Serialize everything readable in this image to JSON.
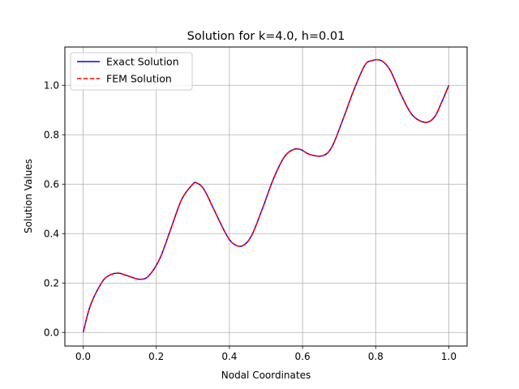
{
  "chart_data": {
    "type": "line",
    "title": "Solution for k=4.0, h=0.01",
    "xlabel": "Nodal Coordinates",
    "ylabel": "Solution Values",
    "xlim": [
      -0.05,
      1.05
    ],
    "ylim": [
      -0.055,
      1.155
    ],
    "xticks": [
      0.0,
      0.2,
      0.4,
      0.6,
      0.8,
      1.0
    ],
    "xtick_labels": [
      "0.0",
      "0.2",
      "0.4",
      "0.6",
      "0.8",
      "1.0"
    ],
    "yticks": [
      0.0,
      0.2,
      0.4,
      0.6,
      0.8,
      1.0
    ],
    "ytick_labels": [
      "0.0",
      "0.2",
      "0.4",
      "0.6",
      "0.8",
      "1.0"
    ],
    "grid": true,
    "legend_position": "top-left",
    "x": [
      0.0,
      0.02,
      0.05,
      0.07,
      0.095,
      0.12,
      0.155,
      0.18,
      0.21,
      0.24,
      0.27,
      0.3,
      0.31,
      0.33,
      0.36,
      0.39,
      0.41,
      0.435,
      0.46,
      0.49,
      0.52,
      0.55,
      0.575,
      0.595,
      0.62,
      0.655,
      0.68,
      0.71,
      0.74,
      0.77,
      0.79,
      0.815,
      0.84,
      0.87,
      0.9,
      0.935,
      0.96,
      0.98,
      1.0
    ],
    "series": [
      {
        "name": "Exact Solution",
        "color": "#0000ff",
        "style": "solid",
        "values": [
          0.0,
          0.11,
          0.2,
          0.23,
          0.24,
          0.23,
          0.215,
          0.23,
          0.3,
          0.42,
          0.54,
          0.6,
          0.605,
          0.58,
          0.49,
          0.4,
          0.36,
          0.35,
          0.39,
          0.5,
          0.62,
          0.71,
          0.74,
          0.74,
          0.72,
          0.715,
          0.75,
          0.86,
          0.98,
          1.08,
          1.1,
          1.1,
          1.06,
          0.96,
          0.88,
          0.85,
          0.87,
          0.93,
          1.0
        ]
      },
      {
        "name": "FEM Solution",
        "color": "#ff0000",
        "style": "dashed",
        "values": [
          0.0,
          0.11,
          0.2,
          0.23,
          0.24,
          0.23,
          0.215,
          0.23,
          0.3,
          0.42,
          0.54,
          0.6,
          0.605,
          0.58,
          0.49,
          0.4,
          0.36,
          0.35,
          0.39,
          0.5,
          0.62,
          0.71,
          0.74,
          0.74,
          0.72,
          0.715,
          0.75,
          0.86,
          0.98,
          1.08,
          1.1,
          1.1,
          1.06,
          0.96,
          0.88,
          0.85,
          0.87,
          0.93,
          1.0
        ]
      }
    ]
  }
}
